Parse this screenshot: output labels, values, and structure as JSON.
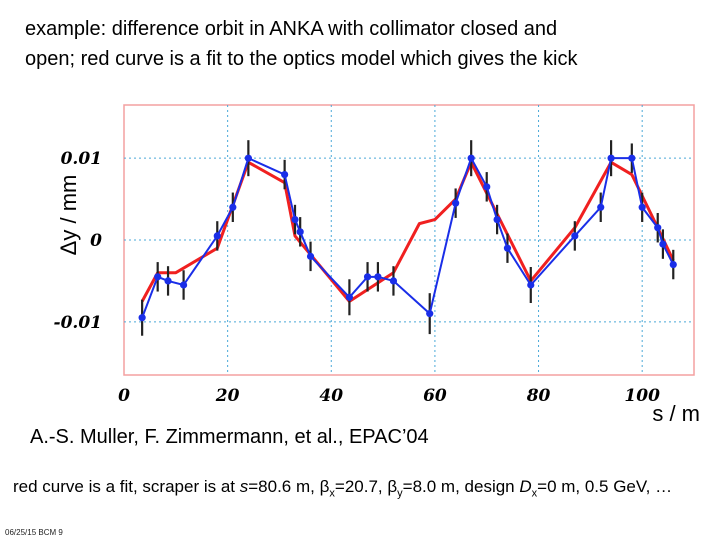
{
  "title": {
    "line1": "example: difference orbit in ANKA with collimator closed and",
    "line2": "open; red curve is a fit to the optics model which gives the kick"
  },
  "credit": "A.-S. Muller, F. Zimmermann, et al., EPAC’04",
  "caption": {
    "part1": "red curve is a fit, scraper is at ",
    "s_var": "s",
    "part2": "=80.6 m, ",
    "beta": "β",
    "beta_x_sub": "x",
    "part3": "=20.7, ",
    "beta_y_sub": "y",
    "part4": "=8.0 m, design ",
    "d_var": "D",
    "d_sub": "x",
    "part5": "=0 m, 0.5 GeV, …"
  },
  "footer": "06/25/15 BCM 9",
  "colors": {
    "measured": "#1a2ee8",
    "fit": "#f02020",
    "error_bar": "#222222",
    "grid": "#4aa8d8",
    "frame": "#f4a0a0"
  },
  "chart_data": {
    "type": "line",
    "xlabel": "s / m",
    "ylabel": "Δy / mm",
    "xlim": [
      0,
      110
    ],
    "ylim": [
      -0.0165,
      0.0165
    ],
    "xticks": [
      0,
      20,
      40,
      60,
      80,
      100
    ],
    "xtick_labels": [
      "0",
      "20",
      "40",
      "60",
      "80",
      "100"
    ],
    "yticks": [
      0.01,
      0,
      -0.01
    ],
    "ytick_labels": [
      "0.01",
      "0",
      "-0.01"
    ],
    "grid": true,
    "series": [
      {
        "name": "measured difference orbit",
        "x": [
          3.5,
          6.5,
          8.5,
          11.5,
          18,
          21,
          24,
          31,
          33,
          34,
          36,
          43.5,
          47,
          49,
          52,
          59,
          64,
          67,
          70,
          72,
          74,
          78.5,
          87,
          92,
          94,
          98,
          100,
          103,
          104,
          106
        ],
        "y": [
          -0.0095,
          -0.0045,
          -0.005,
          -0.0055,
          0.0005,
          0.004,
          0.01,
          0.008,
          0.0025,
          0.001,
          -0.002,
          -0.007,
          -0.0045,
          -0.0045,
          -0.005,
          -0.009,
          0.0045,
          0.01,
          0.0065,
          0.0025,
          -0.001,
          -0.0055,
          0.0005,
          0.004,
          0.01,
          0.01,
          0.004,
          0.0015,
          -0.0005,
          -0.003
        ],
        "error": [
          0.0022,
          0.0018,
          0.0018,
          0.0018,
          0.0018,
          0.0018,
          0.0022,
          0.0018,
          0.0018,
          0.0018,
          0.0018,
          0.0022,
          0.0018,
          0.0018,
          0.0018,
          0.0025,
          0.0018,
          0.0022,
          0.0018,
          0.0018,
          0.0018,
          0.0022,
          0.0018,
          0.0018,
          0.0022,
          0.0018,
          0.0018,
          0.0018,
          0.0018,
          0.0018
        ]
      },
      {
        "name": "fit to optics model",
        "x": [
          3.5,
          6.5,
          10,
          18,
          24,
          31,
          33,
          43.5,
          52,
          57,
          60,
          64,
          67,
          78.5,
          87,
          94,
          98,
          103,
          106
        ],
        "y": [
          -0.0075,
          -0.004,
          -0.004,
          -0.001,
          0.0095,
          0.007,
          0.0005,
          -0.0075,
          -0.004,
          0.002,
          0.0025,
          0.005,
          0.0095,
          -0.005,
          0.0015,
          0.0095,
          0.008,
          0.0015,
          -0.0025
        ]
      }
    ]
  }
}
